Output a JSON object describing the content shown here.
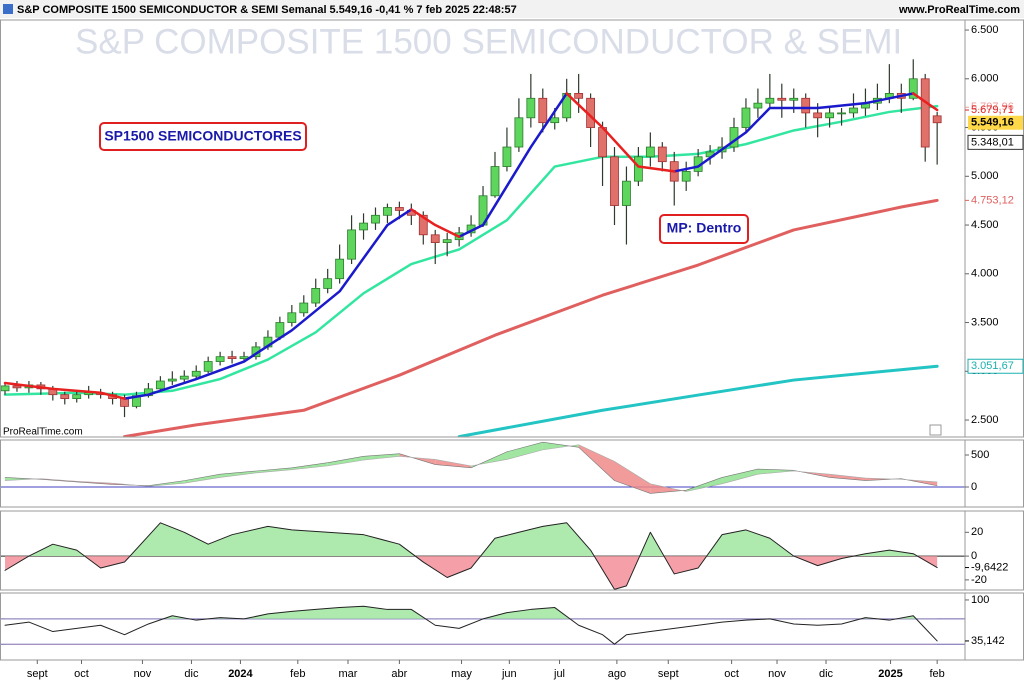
{
  "header": {
    "title_bar": "S&P COMPOSITE 1500 SEMICONDUCTOR & SEMI Semanal 5.549,16 -0,41 % 7 feb 2025 22:48:57",
    "site": "www.ProRealTime.com"
  },
  "chart_data": [
    {
      "type": "candlestick",
      "watermark": "S&P COMPOSITE 1500 SEMICONDUCTOR & SEMI",
      "credit": "ProRealTime.com",
      "annotations": [
        "SP1500 SEMICONDUCTORES",
        "MP: Dentro"
      ],
      "up_color": "#5ed65e",
      "down_color": "#e0706a",
      "xlim": [
        -0.42,
        80.33
      ],
      "ylim": [
        2326,
        6603
      ],
      "yticks": [
        {
          "value": 2500,
          "label": "2.500"
        },
        {
          "value": 3000,
          "label": "3.000"
        },
        {
          "value": 3500,
          "label": "3.500"
        },
        {
          "value": 4000,
          "label": "4.000"
        },
        {
          "value": 4500,
          "label": "4.500"
        },
        {
          "value": 5000,
          "label": "5.000"
        },
        {
          "value": 5500,
          "label": "5.500"
        },
        {
          "value": 6000,
          "label": "6.000"
        },
        {
          "value": 6500,
          "label": "6.500"
        }
      ],
      "candles": [
        [
          2800,
          2880,
          2760,
          2850
        ],
        [
          2850,
          2900,
          2790,
          2830
        ],
        [
          2830,
          2900,
          2780,
          2860
        ],
        [
          2860,
          2890,
          2760,
          2820
        ],
        [
          2820,
          2850,
          2700,
          2760
        ],
        [
          2760,
          2790,
          2660,
          2720
        ],
        [
          2720,
          2800,
          2680,
          2760
        ],
        [
          2760,
          2850,
          2720,
          2780
        ],
        [
          2780,
          2820,
          2720,
          2760
        ],
        [
          2760,
          2790,
          2660,
          2720
        ],
        [
          2720,
          2760,
          2530,
          2640
        ],
        [
          2640,
          2790,
          2620,
          2750
        ],
        [
          2750,
          2880,
          2730,
          2820
        ],
        [
          2820,
          2950,
          2800,
          2900
        ],
        [
          2900,
          3000,
          2860,
          2920
        ],
        [
          2920,
          3010,
          2880,
          2950
        ],
        [
          2950,
          3060,
          2920,
          3000
        ],
        [
          3000,
          3150,
          2980,
          3100
        ],
        [
          3100,
          3200,
          3060,
          3150
        ],
        [
          3150,
          3210,
          3080,
          3130
        ],
        [
          3130,
          3200,
          3090,
          3150
        ],
        [
          3150,
          3300,
          3120,
          3250
        ],
        [
          3250,
          3420,
          3220,
          3350
        ],
        [
          3350,
          3560,
          3320,
          3500
        ],
        [
          3500,
          3680,
          3460,
          3600
        ],
        [
          3600,
          3780,
          3560,
          3700
        ],
        [
          3700,
          3950,
          3660,
          3850
        ],
        [
          3850,
          4050,
          3800,
          3950
        ],
        [
          3950,
          4300,
          3900,
          4150
        ],
        [
          4150,
          4600,
          4100,
          4450
        ],
        [
          4450,
          4620,
          4350,
          4520
        ],
        [
          4520,
          4680,
          4450,
          4600
        ],
        [
          4600,
          4720,
          4520,
          4680
        ],
        [
          4680,
          4740,
          4560,
          4650
        ],
        [
          4650,
          4720,
          4500,
          4600
        ],
        [
          4600,
          4640,
          4300,
          4400
        ],
        [
          4400,
          4450,
          4100,
          4320
        ],
        [
          4320,
          4420,
          4180,
          4350
        ],
        [
          4350,
          4480,
          4280,
          4420
        ],
        [
          4420,
          4600,
          4380,
          4500
        ],
        [
          4500,
          4900,
          4480,
          4800
        ],
        [
          4800,
          5250,
          4780,
          5100
        ],
        [
          5100,
          5500,
          5050,
          5300
        ],
        [
          5300,
          5800,
          5250,
          5600
        ],
        [
          5600,
          6050,
          5500,
          5800
        ],
        [
          5800,
          5900,
          5450,
          5550
        ],
        [
          5550,
          5700,
          5480,
          5600
        ],
        [
          5600,
          6000,
          5560,
          5850
        ],
        [
          5850,
          6050,
          5650,
          5800
        ],
        [
          5800,
          5850,
          5300,
          5500
        ],
        [
          5500,
          5560,
          4900,
          5200
        ],
        [
          5200,
          5300,
          4500,
          4700
        ],
        [
          4700,
          5100,
          4300,
          4950
        ],
        [
          4950,
          5300,
          4900,
          5200
        ],
        [
          5200,
          5450,
          5100,
          5300
        ],
        [
          5300,
          5350,
          5050,
          5150
        ],
        [
          5150,
          5250,
          4700,
          4950
        ],
        [
          4950,
          5150,
          4850,
          5050
        ],
        [
          5050,
          5280,
          5000,
          5200
        ],
        [
          5200,
          5320,
          5120,
          5250
        ],
        [
          5250,
          5400,
          5180,
          5300
        ],
        [
          5300,
          5600,
          5250,
          5500
        ],
        [
          5500,
          5800,
          5450,
          5700
        ],
        [
          5700,
          5900,
          5600,
          5750
        ],
        [
          5750,
          6050,
          5700,
          5800
        ],
        [
          5800,
          5950,
          5600,
          5780
        ],
        [
          5780,
          5900,
          5650,
          5800
        ],
        [
          5800,
          5850,
          5500,
          5650
        ],
        [
          5650,
          5750,
          5400,
          5600
        ],
        [
          5600,
          5720,
          5500,
          5650
        ],
        [
          5650,
          5700,
          5520,
          5650
        ],
        [
          5650,
          5850,
          5600,
          5700
        ],
        [
          5700,
          5900,
          5620,
          5750
        ],
        [
          5750,
          5950,
          5680,
          5800
        ],
        [
          5800,
          6150,
          5750,
          5850
        ],
        [
          5850,
          5950,
          5650,
          5800
        ],
        [
          5800,
          6200,
          5780,
          6000
        ],
        [
          6000,
          6050,
          5150,
          5300
        ],
        [
          5620,
          5660,
          5120,
          5549.16
        ]
      ],
      "series": [
        {
          "color": "#e06060",
          "width": 3,
          "x": [
            10,
            16,
            25,
            33,
            41,
            50,
            58,
            66,
            75,
            78
          ],
          "values": [
            2330,
            2450,
            2600,
            2960,
            3370,
            3780,
            4090,
            4450,
            4685,
            4753.12
          ]
        },
        {
          "color": "#22c4c4",
          "width": 3,
          "x": [
            38,
            50,
            58,
            66,
            78
          ],
          "values": [
            2330,
            2600,
            2756,
            2910,
            3051.67
          ]
        },
        {
          "color": "#33e6a0",
          "width": 2.5,
          "x": [
            0,
            6,
            10,
            14,
            18,
            22,
            26,
            30,
            34,
            38,
            42,
            46,
            50,
            54,
            58,
            62,
            66,
            70,
            74,
            78
          ],
          "values": [
            2760,
            2780,
            2760,
            2800,
            2920,
            3120,
            3400,
            3800,
            4100,
            4250,
            4550,
            5100,
            5200,
            5200,
            5230,
            5330,
            5470,
            5560,
            5660,
            5720
          ]
        },
        {
          "color": "#1a1acc",
          "width": 2.5,
          "x": [
            0,
            4,
            8,
            10,
            12,
            16,
            20,
            24,
            28,
            32,
            34,
            36,
            38,
            40,
            44,
            47,
            50,
            53,
            56,
            58,
            62,
            64,
            68,
            72,
            74,
            76,
            78
          ],
          "values": [
            null,
            null,
            null,
            2720,
            2760,
            2920,
            3100,
            3420,
            3820,
            4500,
            4660,
            null,
            4380,
            4500,
            5300,
            5850,
            null,
            null,
            5050,
            5100,
            5450,
            5700,
            5700,
            5750,
            5800,
            5850,
            null
          ]
        },
        {
          "color": "#e82020",
          "width": 2.5,
          "x": [
            0,
            4,
            8,
            10,
            12,
            16,
            20,
            24,
            28,
            32,
            34,
            36,
            38,
            40,
            44,
            47,
            50,
            53,
            56,
            58,
            62,
            64,
            68,
            72,
            74,
            76,
            78
          ],
          "values": [
            2880,
            2820,
            2780,
            2720,
            null,
            null,
            null,
            null,
            null,
            null,
            4660,
            4500,
            4380,
            null,
            null,
            5850,
            5500,
            5100,
            5050,
            null,
            null,
            null,
            null,
            null,
            null,
            5850,
            5680
          ]
        }
      ],
      "price_labels": [
        {
          "value": 5707.96,
          "label": "5.707,96",
          "color": "#f09a9a"
        },
        {
          "value": 5679.71,
          "label": "5.679,71",
          "color": "#e02020"
        },
        {
          "value": 5549.16,
          "label": "5.549,16",
          "color": "#000000",
          "background": "#ffd84a"
        },
        {
          "value": 5348.01,
          "label": "5.348,01",
          "color": "#000000",
          "border": "#333333"
        },
        {
          "value": 4753.12,
          "label": "4.753,12",
          "color": "#e06060"
        },
        {
          "value": 3051.67,
          "label": "3.051,67",
          "color": "#1ab0b0",
          "border": "#1ab0b0"
        }
      ]
    },
    {
      "type": "band",
      "xlim": [
        -0.42,
        80.33
      ],
      "ylim": [
        -312,
        734
      ],
      "yticks": [
        500,
        0
      ],
      "hlines": [
        0
      ],
      "hline_color": "#4040c0",
      "fill_up": "#8fe08f",
      "fill_down": "#f08a8a",
      "x": [
        0,
        3,
        6,
        9,
        12,
        15,
        18,
        21,
        24,
        27,
        30,
        33,
        36,
        39,
        42,
        45,
        48,
        51,
        54,
        57,
        60,
        63,
        66,
        69,
        72,
        75,
        78
      ],
      "series": [
        {
          "color": "#777777",
          "values": [
            150,
            120,
            80,
            40,
            20,
            100,
            200,
            250,
            300,
            380,
            480,
            520,
            350,
            300,
            550,
            700,
            620,
            100,
            -100,
            -50,
            150,
            280,
            260,
            150,
            100,
            130,
            20
          ]
        },
        {
          "color": "#aaaaaa",
          "values": [
            100,
            130,
            90,
            60,
            10,
            60,
            150,
            220,
            270,
            330,
            420,
            480,
            430,
            330,
            430,
            580,
            660,
            400,
            50,
            -70,
            50,
            200,
            250,
            200,
            140,
            120,
            80
          ]
        }
      ]
    },
    {
      "type": "area",
      "xlim": [
        -0.42,
        80.33
      ],
      "ylim": [
        -28.5,
        37.9
      ],
      "yticks": [
        20,
        0,
        -20
      ],
      "hlines": [
        0
      ],
      "hline_color": "#222222",
      "fill_up": "#aeeaae",
      "fill_down": "#f5a0a8",
      "series": [
        {
          "color": "#222222",
          "x": [
            0,
            2,
            4,
            6,
            8,
            10,
            13,
            15,
            17,
            19,
            22,
            24,
            27,
            30,
            33,
            35,
            37,
            39,
            41,
            43,
            45,
            47,
            49,
            51,
            52,
            54,
            56,
            58,
            60,
            62,
            64,
            66,
            68,
            70,
            72,
            74,
            76,
            78
          ],
          "values": [
            -12,
            0,
            10,
            5,
            -10,
            -5,
            28,
            20,
            10,
            18,
            25,
            22,
            20,
            18,
            10,
            -5,
            -18,
            -10,
            15,
            20,
            25,
            28,
            5,
            -28,
            -25,
            20,
            -15,
            -10,
            18,
            22,
            15,
            0,
            -8,
            -2,
            2,
            5,
            2,
            -9.6422
          ]
        }
      ],
      "price_labels": [
        {
          "value": -9.6422,
          "label": "-9,6422",
          "color": "#000000"
        }
      ]
    },
    {
      "type": "line",
      "xlim": [
        -0.42,
        80.33
      ],
      "ylim": [
        5,
        111
      ],
      "yticks": [
        100
      ],
      "hlines": [
        70,
        30
      ],
      "hline_color": "#7060b0",
      "fill_up": "#aeeaae",
      "fill_down": "#f5a0a8",
      "series": [
        {
          "color": "#222222",
          "x": [
            0,
            2,
            4,
            6,
            8,
            10,
            12,
            14,
            16,
            18,
            20,
            22,
            24,
            26,
            28,
            30,
            32,
            34,
            36,
            38,
            40,
            42,
            44,
            46,
            48,
            50,
            51,
            52,
            54,
            56,
            58,
            60,
            62,
            64,
            66,
            68,
            70,
            72,
            74,
            76,
            77,
            78
          ],
          "values": [
            60,
            65,
            50,
            55,
            60,
            45,
            62,
            75,
            68,
            72,
            70,
            78,
            82,
            85,
            88,
            90,
            85,
            85,
            60,
            55,
            70,
            80,
            85,
            88,
            60,
            45,
            30,
            45,
            50,
            55,
            60,
            65,
            68,
            70,
            62,
            60,
            62,
            72,
            68,
            75,
            55,
            35.142
          ]
        }
      ],
      "price_labels": [
        {
          "value": 35.142,
          "label": "35,142",
          "color": "#000000"
        }
      ],
      "xticks": [
        {
          "value": 2.7,
          "label": "sept"
        },
        {
          "value": 6.4,
          "label": "oct"
        },
        {
          "value": 11.5,
          "label": "nov"
        },
        {
          "value": 15.6,
          "label": "dic"
        },
        {
          "value": 19.7,
          "label": "2024"
        },
        {
          "value": 24.5,
          "label": "feb"
        },
        {
          "value": 28.7,
          "label": "mar"
        },
        {
          "value": 33.0,
          "label": "abr"
        },
        {
          "value": 38.2,
          "label": "may"
        },
        {
          "value": 42.2,
          "label": "jun"
        },
        {
          "value": 46.4,
          "label": "jul"
        },
        {
          "value": 51.2,
          "label": "ago"
        },
        {
          "value": 55.5,
          "label": "sept"
        },
        {
          "value": 60.8,
          "label": "oct"
        },
        {
          "value": 64.6,
          "label": "nov"
        },
        {
          "value": 68.7,
          "label": "dic"
        },
        {
          "value": 74.1,
          "label": "2025"
        },
        {
          "value": 78,
          "label": "feb"
        }
      ]
    }
  ]
}
